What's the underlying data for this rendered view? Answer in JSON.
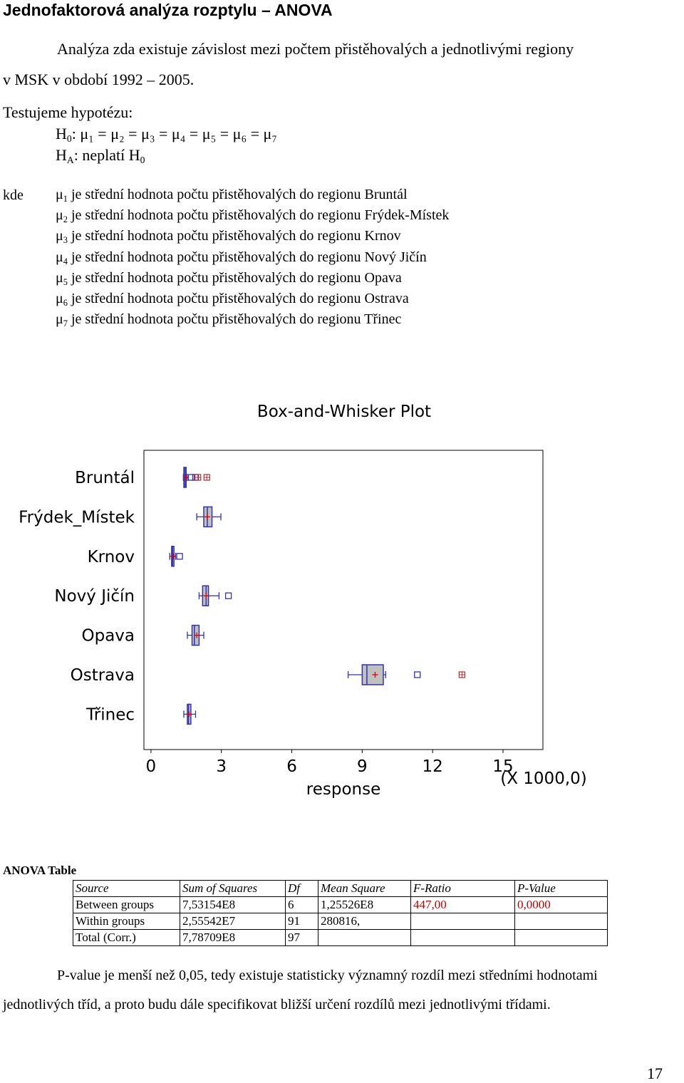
{
  "heading": "Jednofaktorová analýza rozptylu – ANOVA",
  "intro_line1": "Analýza zda existuje závislost mezi počtem přistěhovalých a jednotlivými regiony",
  "intro_line2": "v MSK v období 1992 – 2005.",
  "hypothesis_label": "Testujeme hypotézu:",
  "h0": {
    "prefix": "H",
    "sub": "0",
    "rest": ": μ₁ = μ₂ = μ₃ = μ₄ = μ₅ = μ₆ = μ₇"
  },
  "ha": {
    "prefix": "H",
    "sub": "A",
    "rest": ": neplatí H",
    "rest_sub": "0"
  },
  "kde": "kde",
  "mu_definitions": [
    {
      "sub": "1",
      "text": " je střední hodnota počtu přistěhovalých do regionu Bruntál"
    },
    {
      "sub": "2",
      "text": " je střední hodnota počtu přistěhovalých do regionu Frýdek-Místek"
    },
    {
      "sub": "3",
      "text": " je střední hodnota počtu přistěhovalých do regionu Krnov"
    },
    {
      "sub": "4",
      "text": " je střední hodnota počtu přistěhovalých do regionu Nový Jičín"
    },
    {
      "sub": "5",
      "text": " je střední hodnota počtu přistěhovalých do regionu Opava"
    },
    {
      "sub": "6",
      "text": " je střední hodnota počtu přistěhovalých do regionu Ostrava"
    },
    {
      "sub": "7",
      "text": " je střední hodnota počtu přistěhovalých do regionu Třinec"
    }
  ],
  "chart_data": {
    "type": "box",
    "title": "Box-and-Whisker Plot",
    "xlabel": "response",
    "x_scale_note": "(X 1000,0)",
    "xlim": [
      -0.3,
      16.7
    ],
    "xticks": [
      0,
      3,
      6,
      9,
      12,
      15
    ],
    "xtick_labels": [
      "0",
      "3",
      "6",
      "9",
      "12",
      "15"
    ],
    "grid": false,
    "colors": {
      "box_fill": "#c0c0c0",
      "box_edge": "#3333aa",
      "mean_marker": "#e00000",
      "outlier": "#3333aa",
      "far_outlier": "#b03030"
    },
    "groups": [
      {
        "name": "Bruntál",
        "whisker_low": 1.38,
        "q1": 1.4,
        "median": 1.45,
        "q3": 1.5,
        "whisker_high": 1.55,
        "mean": 1.48,
        "outliers": [
          1.72,
          1.9
        ],
        "far_outliers": [
          2.0,
          2.38
        ]
      },
      {
        "name": "Frýdek_Místek",
        "whisker_low": 1.95,
        "q1": 2.25,
        "median": 2.4,
        "q3": 2.6,
        "whisker_high": 2.98,
        "mean": 2.4,
        "outliers": [],
        "far_outliers": []
      },
      {
        "name": "Krnov",
        "whisker_low": 0.8,
        "q1": 0.88,
        "median": 0.92,
        "q3": 0.98,
        "whisker_high": 1.05,
        "mean": 0.95,
        "outliers": [
          1.22
        ],
        "far_outliers": []
      },
      {
        "name": "Nový Jičín",
        "whisker_low": 2.05,
        "q1": 2.2,
        "median": 2.35,
        "q3": 2.45,
        "whisker_high": 2.9,
        "mean": 2.35,
        "outliers": [
          3.3
        ],
        "far_outliers": []
      },
      {
        "name": "Opava",
        "whisker_low": 1.55,
        "q1": 1.75,
        "median": 1.85,
        "q3": 2.05,
        "whisker_high": 2.25,
        "mean": 1.95,
        "outliers": [],
        "far_outliers": []
      },
      {
        "name": "Ostrava",
        "whisker_low": 8.4,
        "q1": 9.0,
        "median": 9.2,
        "q3": 9.9,
        "whisker_high": 10.0,
        "mean": 9.55,
        "outliers": [
          11.35
        ],
        "far_outliers": [
          13.25
        ]
      },
      {
        "name": "Třinec",
        "whisker_low": 1.4,
        "q1": 1.55,
        "median": 1.6,
        "q3": 1.7,
        "whisker_high": 1.9,
        "mean": 1.62,
        "outliers": [],
        "far_outliers": []
      }
    ]
  },
  "anova": {
    "title": "ANOVA Table",
    "headers": [
      "Source",
      "Sum of Squares",
      "Df",
      "Mean Square",
      "F-Ratio",
      "P-Value"
    ],
    "rows": [
      [
        "Between groups",
        "7,53154E8",
        "6",
        "1,25526E8",
        "447,00",
        "0,0000"
      ],
      [
        "Within groups",
        "2,55542E7",
        "91",
        "280816,",
        "",
        ""
      ],
      [
        "Total (Corr.)",
        "7,78709E8",
        "97",
        "",
        "",
        ""
      ]
    ]
  },
  "conclusion_line1": "P-value je menší než 0,05, tedy existuje statisticky významný rozdíl mezi středními hodnotami",
  "conclusion_line2": "jednotlivých tříd, a proto budu dále specifikovat bližší určení rozdílů mezi jednotlivými třídami.",
  "page_number": "17"
}
